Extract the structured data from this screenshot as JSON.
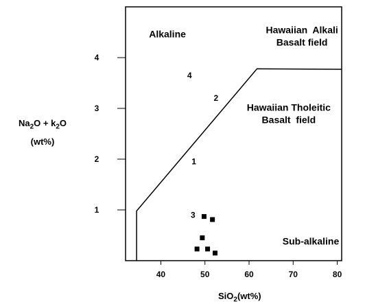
{
  "chart_data": {
    "type": "scatter",
    "xlabel": {
      "main": "SiO",
      "sub": "2",
      "suffix": "(wt%)"
    },
    "ylabel": {
      "line1": {
        "a": "Na",
        "a_sub": "2",
        "b": "O + k",
        "b_sub": "2",
        "c": "O"
      },
      "line2": "(wt%)"
    },
    "xlim": [
      32,
      81
    ],
    "ylim": [
      0,
      5
    ],
    "xticks": [
      40,
      50,
      60,
      70,
      80
    ],
    "yticks": [
      1,
      2,
      3,
      4
    ],
    "grid": false,
    "boundary": {
      "points": [
        [
          34.5,
          0
        ],
        [
          34.5,
          0.98
        ],
        [
          61.8,
          3.78
        ],
        [
          81,
          3.77
        ]
      ]
    },
    "region_labels": [
      {
        "lines": [
          "Alkaline"
        ],
        "x": 41.5,
        "y": 4.4
      },
      {
        "lines": [
          "Hawaiian  Alkali",
          "Basalt field"
        ],
        "x": 72,
        "y": 4.48
      },
      {
        "lines": [
          "Hawaiian Tholeitic",
          "Basalt  field"
        ],
        "x": 69,
        "y": 2.95
      },
      {
        "lines": [
          "Sub-alkaline"
        ],
        "x": 74,
        "y": 0.32
      }
    ],
    "annotations": [
      {
        "text": "4",
        "x": 46.5,
        "y": 3.65
      },
      {
        "text": "2",
        "x": 52.5,
        "y": 3.2
      },
      {
        "text": "1",
        "x": 47.5,
        "y": 1.95
      },
      {
        "text": "3",
        "x": 47.3,
        "y": 0.9
      }
    ],
    "points": [
      {
        "x": 49.8,
        "y": 0.87
      },
      {
        "x": 51.7,
        "y": 0.81
      },
      {
        "x": 49.4,
        "y": 0.45
      },
      {
        "x": 48.2,
        "y": 0.23
      },
      {
        "x": 50.6,
        "y": 0.23
      },
      {
        "x": 52.3,
        "y": 0.15
      }
    ]
  }
}
